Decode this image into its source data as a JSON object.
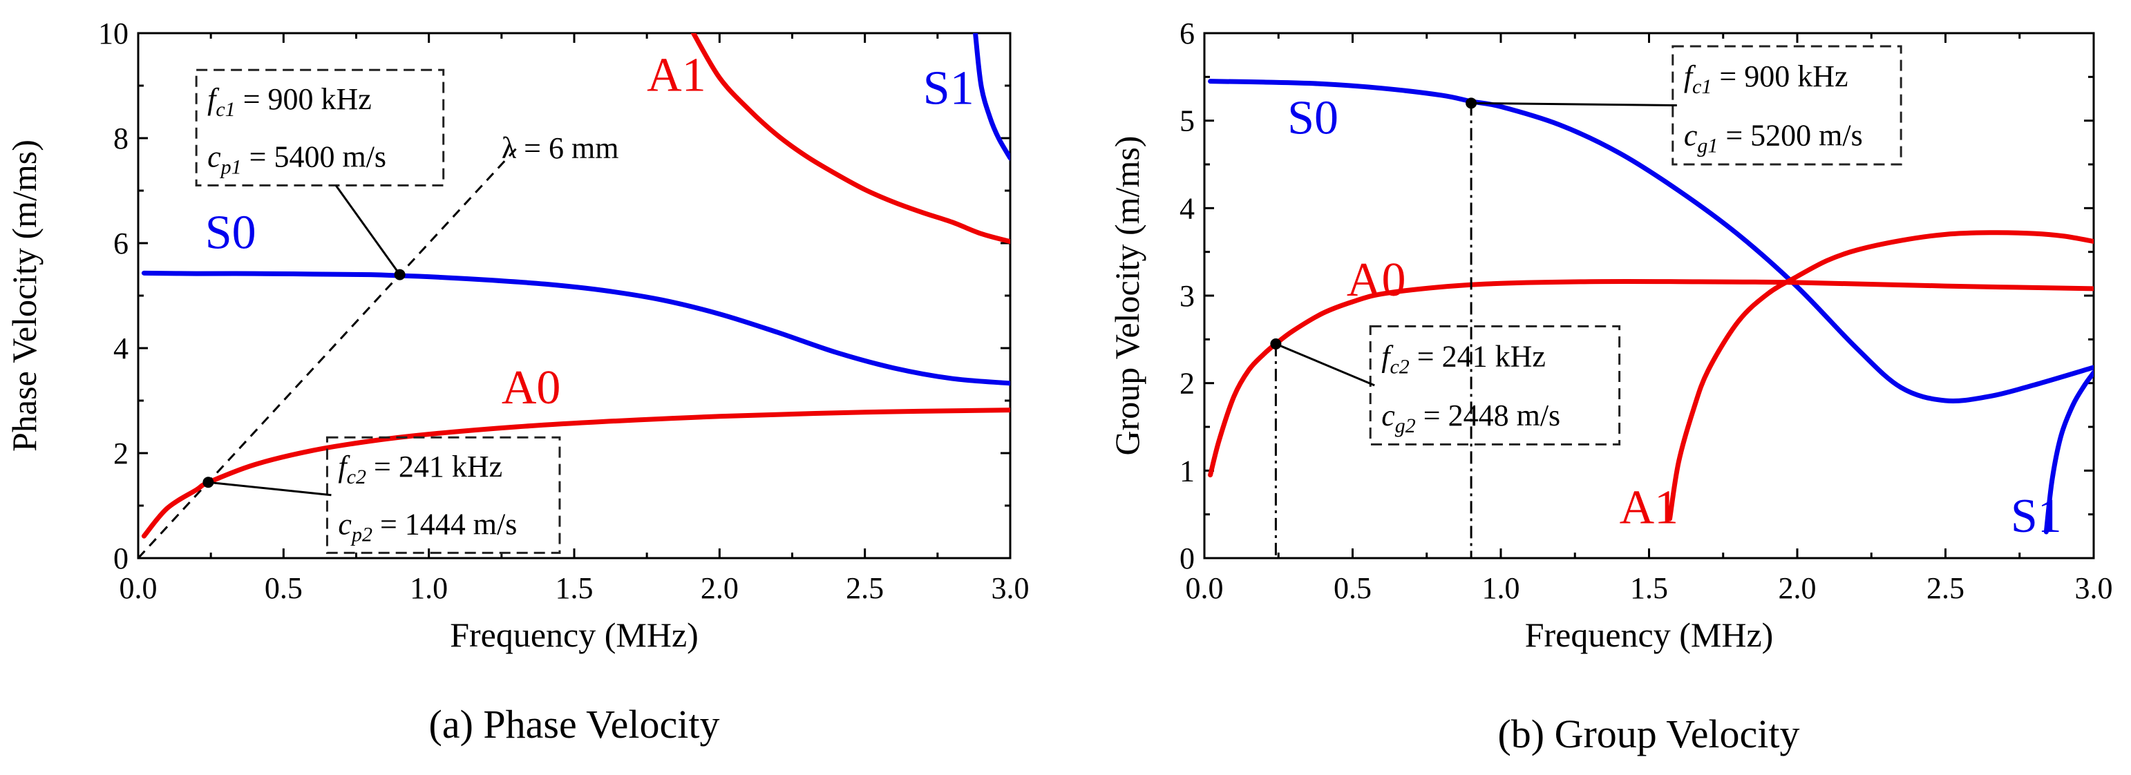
{
  "colors": {
    "symmetric": "#0000ee",
    "antisymmetric": "#ee0000",
    "axis": "#000000"
  },
  "chart_data": [
    {
      "type": "line",
      "caption": "(a) Phase Velocity",
      "xlabel": "Frequency (MHz)",
      "ylabel": "Phase Velocity (m/ms)",
      "xlim": [
        0,
        3.0
      ],
      "ylim": [
        0,
        10
      ],
      "xticks": [
        "0.0",
        "0.5",
        "1.0",
        "1.5",
        "2.0",
        "2.5",
        "3.0"
      ],
      "yticks": [
        "0",
        "2",
        "4",
        "6",
        "8",
        "10"
      ],
      "series": [
        {
          "name": "S0",
          "color": "#0000ee",
          "x": [
            0.02,
            0.2,
            0.4,
            0.6,
            0.8,
            0.9,
            1.0,
            1.2,
            1.4,
            1.6,
            1.8,
            2.0,
            2.2,
            2.4,
            2.6,
            2.8,
            3.0
          ],
          "y": [
            5.43,
            5.42,
            5.42,
            5.41,
            5.4,
            5.38,
            5.36,
            5.3,
            5.22,
            5.1,
            4.92,
            4.65,
            4.3,
            3.92,
            3.62,
            3.42,
            3.33
          ]
        },
        {
          "name": "A0",
          "color": "#ee0000",
          "x": [
            0.02,
            0.1,
            0.2,
            0.241,
            0.4,
            0.6,
            0.8,
            1.0,
            1.3,
            1.6,
            2.0,
            2.5,
            3.0
          ],
          "y": [
            0.42,
            0.95,
            1.3,
            1.44,
            1.78,
            2.05,
            2.23,
            2.36,
            2.5,
            2.6,
            2.7,
            2.78,
            2.82
          ]
        },
        {
          "name": "A1",
          "color": "#ee0000",
          "x": [
            1.91,
            2.0,
            2.1,
            2.2,
            2.3,
            2.4,
            2.5,
            2.6,
            2.7,
            2.8,
            2.9,
            3.0
          ],
          "y": [
            10.0,
            9.15,
            8.55,
            8.05,
            7.65,
            7.32,
            7.02,
            6.78,
            6.58,
            6.4,
            6.18,
            6.03
          ]
        },
        {
          "name": "S1",
          "color": "#0000ee",
          "x": [
            2.88,
            2.9,
            2.93,
            2.96,
            3.0
          ],
          "y": [
            10.0,
            9.0,
            8.4,
            8.0,
            7.62
          ]
        }
      ],
      "labels": {
        "s0": {
          "text": "S0",
          "x": 0.23,
          "y": 5.9
        },
        "a0": {
          "text": "A0",
          "x": 1.25,
          "y": 2.95
        },
        "a1": {
          "text": "A1",
          "x": 1.75,
          "y": 8.9
        },
        "s1": {
          "text": "S1",
          "x": 2.7,
          "y": 8.65
        }
      },
      "reference_line": {
        "label": "λ = 6 mm",
        "x": [
          0,
          1.3
        ],
        "y": [
          0,
          7.8
        ],
        "label_x": 1.25,
        "label_y": 7.8
      },
      "annotations": [
        {
          "point": [
            0.9,
            5.4
          ],
          "box": {
            "x0": 0.2,
            "x1": 1.05,
            "y0": 7.1,
            "y1": 9.3
          },
          "lines": [
            {
              "sym": "f",
              "sub": "c1",
              "value": "900 kHz"
            },
            {
              "sym": "c",
              "sub": "p1",
              "value": "5400 m/s"
            }
          ]
        },
        {
          "point": [
            0.241,
            1.444
          ],
          "box": {
            "x0": 0.65,
            "x1": 1.45,
            "y0": 0.1,
            "y1": 2.3
          },
          "lines": [
            {
              "sym": "f",
              "sub": "c2",
              "value": "241 kHz"
            },
            {
              "sym": "c",
              "sub": "p2",
              "value": "1444 m/s"
            }
          ]
        }
      ]
    },
    {
      "type": "line",
      "caption": "(b) Group Velocity",
      "xlabel": "Frequency (MHz)",
      "ylabel": "Group Velocity (m/ms)",
      "xlim": [
        0,
        3.0
      ],
      "ylim": [
        0,
        6
      ],
      "xticks": [
        "0.0",
        "0.5",
        "1.0",
        "1.5",
        "2.0",
        "2.5",
        "3.0"
      ],
      "yticks": [
        "0",
        "1",
        "2",
        "3",
        "4",
        "5",
        "6"
      ],
      "series": [
        {
          "name": "S0",
          "color": "#0000ee",
          "x": [
            0.02,
            0.2,
            0.4,
            0.6,
            0.8,
            0.9,
            1.0,
            1.2,
            1.4,
            1.6,
            1.8,
            2.0,
            2.2,
            2.35,
            2.5,
            2.65,
            2.8,
            3.0
          ],
          "y": [
            5.45,
            5.44,
            5.42,
            5.37,
            5.29,
            5.22,
            5.16,
            4.95,
            4.63,
            4.2,
            3.7,
            3.1,
            2.4,
            1.95,
            1.8,
            1.85,
            1.98,
            2.18
          ]
        },
        {
          "name": "A0",
          "color": "#ee0000",
          "x": [
            0.02,
            0.05,
            0.1,
            0.15,
            0.2,
            0.241,
            0.3,
            0.4,
            0.5,
            0.6,
            0.8,
            1.0,
            1.3,
            1.6,
            2.0,
            2.5,
            3.0
          ],
          "y": [
            0.95,
            1.35,
            1.85,
            2.15,
            2.33,
            2.45,
            2.6,
            2.8,
            2.93,
            3.02,
            3.1,
            3.14,
            3.16,
            3.16,
            3.15,
            3.11,
            3.08
          ]
        },
        {
          "name": "A1",
          "color": "#ee0000",
          "x": [
            1.57,
            1.6,
            1.65,
            1.7,
            1.8,
            1.9,
            2.0,
            2.1,
            2.2,
            2.35,
            2.5,
            2.65,
            2.8,
            2.9,
            3.0
          ],
          "y": [
            0.45,
            1.1,
            1.7,
            2.15,
            2.7,
            3.02,
            3.22,
            3.4,
            3.52,
            3.63,
            3.7,
            3.72,
            3.71,
            3.68,
            3.62
          ]
        },
        {
          "name": "S1",
          "color": "#0000ee",
          "x": [
            2.84,
            2.86,
            2.89,
            2.93,
            2.97,
            3.0
          ],
          "y": [
            0.3,
            0.9,
            1.4,
            1.75,
            1.98,
            2.12
          ]
        }
      ],
      "labels": {
        "s0": {
          "text": "S0",
          "x": 0.28,
          "y": 4.85
        },
        "a0": {
          "text": "A0",
          "x": 0.48,
          "y": 3.0
        },
        "a1": {
          "text": "A1",
          "x": 1.4,
          "y": 0.4
        },
        "s1": {
          "text": "S1",
          "x": 2.72,
          "y": 0.3
        }
      },
      "reference_line": null,
      "annotations": [
        {
          "point": [
            0.9,
            5.2
          ],
          "drop_line": true,
          "box": {
            "x0": 1.58,
            "x1": 2.35,
            "y0": 4.5,
            "y1": 5.85
          },
          "lines": [
            {
              "sym": "f",
              "sub": "c1",
              "value": "900 kHz"
            },
            {
              "sym": "c",
              "sub": "g1",
              "value": "5200 m/s"
            }
          ]
        },
        {
          "point": [
            0.241,
            2.448
          ],
          "drop_line": true,
          "box": {
            "x0": 0.56,
            "x1": 1.4,
            "y0": 1.3,
            "y1": 2.65
          },
          "lines": [
            {
              "sym": "f",
              "sub": "c2",
              "value": "241 kHz"
            },
            {
              "sym": "c",
              "sub": "g2",
              "value": "2448 m/s"
            }
          ]
        }
      ]
    }
  ]
}
